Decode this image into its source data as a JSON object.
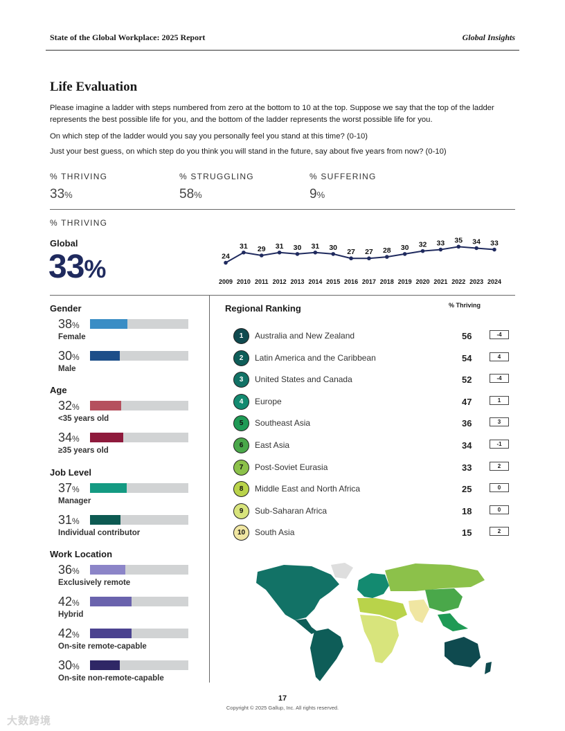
{
  "header": {
    "left": "State of the Global Workplace: 2025 Report",
    "right": "Global Insights"
  },
  "section_title": "Life Evaluation",
  "questions": [
    "Please imagine a ladder with steps numbered from zero at the bottom to 10 at the top. Suppose we say that the top of the ladder represents the best possible life for you, and the bottom of the ladder represents the worst possible life for you.",
    "On which step of the ladder would you say you personally feel you stand at this time? (0-10)",
    "Just your best guess, on which step do you think you will stand in the future, say about five years from now? (0-10)"
  ],
  "kpis": [
    {
      "label": "% THRIVING",
      "value": "33",
      "unit": "%"
    },
    {
      "label": "% STRUGGLING",
      "value": "58",
      "unit": "%"
    },
    {
      "label": "% SUFFERING",
      "value": "9",
      "unit": "%"
    }
  ],
  "thriving_label": "% THRIVING",
  "global": {
    "label": "Global",
    "value": "33",
    "unit": "%"
  },
  "chart_data": {
    "type": "line",
    "x": [
      "2009",
      "2010",
      "2011",
      "2012",
      "2013",
      "2014",
      "2015",
      "2016",
      "2017",
      "2018",
      "2019",
      "2020",
      "2021",
      "2022",
      "2023",
      "2024"
    ],
    "series": [
      {
        "values": [
          24,
          31,
          29,
          31,
          30,
          31,
          30,
          27,
          27,
          28,
          30,
          32,
          33,
          35,
          34,
          33
        ]
      }
    ],
    "title": "",
    "xlabel": "",
    "ylabel": "",
    "ylim": [
      20,
      38
    ],
    "color": "#1f2a5e",
    "grid": false
  },
  "demographics": [
    {
      "title": "Gender",
      "items": [
        {
          "value": "38",
          "unit": "%",
          "label": "Female",
          "fraction": 0.38,
          "color": "#3a8dc5"
        },
        {
          "value": "30",
          "unit": "%",
          "label": "Male",
          "fraction": 0.3,
          "color": "#1d4e89"
        }
      ]
    },
    {
      "title": "Age",
      "items": [
        {
          "value": "32",
          "unit": "%",
          "label": "<35 years old",
          "fraction": 0.32,
          "color": "#b5505e"
        },
        {
          "value": "34",
          "unit": "%",
          "label": "≥35 years old",
          "fraction": 0.34,
          "color": "#8e1a3c"
        }
      ]
    },
    {
      "title": "Job Level",
      "items": [
        {
          "value": "37",
          "unit": "%",
          "label": "Manager",
          "fraction": 0.37,
          "color": "#149a82"
        },
        {
          "value": "31",
          "unit": "%",
          "label": "Individual contributor",
          "fraction": 0.31,
          "color": "#0d5a52"
        }
      ]
    },
    {
      "title": "Work Location",
      "items": [
        {
          "value": "36",
          "unit": "%",
          "label": "Exclusively remote",
          "fraction": 0.36,
          "color": "#8c85c8"
        },
        {
          "value": "42",
          "unit": "%",
          "label": "Hybrid",
          "fraction": 0.42,
          "color": "#6a63ad"
        },
        {
          "value": "42",
          "unit": "%",
          "label": "On-site remote-capable",
          "fraction": 0.42,
          "color": "#4b4390"
        },
        {
          "value": "30",
          "unit": "%",
          "label": "On-site non-remote-capable",
          "fraction": 0.3,
          "color": "#2f2766"
        }
      ]
    }
  ],
  "regional": {
    "title": "Regional Ranking",
    "column_header": "% Thriving",
    "items": [
      {
        "rank": "1",
        "name": "Australia and New Zealand",
        "value": "56",
        "change": "-4",
        "color": "#0f4a4f",
        "text_color": "#ffffff"
      },
      {
        "rank": "2",
        "name": "Latin America and the Caribbean",
        "value": "54",
        "change": "4",
        "color": "#0e5d58",
        "text_color": "#ffffff"
      },
      {
        "rank": "3",
        "name": "United States and Canada",
        "value": "52",
        "change": "-4",
        "color": "#127266",
        "text_color": "#ffffff"
      },
      {
        "rank": "4",
        "name": "Europe",
        "value": "47",
        "change": "1",
        "color": "#138a70",
        "text_color": "#ffffff"
      },
      {
        "rank": "5",
        "name": "Southeast Asia",
        "value": "36",
        "change": "3",
        "color": "#1f9a55",
        "text_color": "#111111"
      },
      {
        "rank": "6",
        "name": "East Asia",
        "value": "34",
        "change": "-1",
        "color": "#4aa84a",
        "text_color": "#111111"
      },
      {
        "rank": "7",
        "name": "Post-Soviet Eurasia",
        "value": "33",
        "change": "2",
        "color": "#8cc14a",
        "text_color": "#111111"
      },
      {
        "rank": "8",
        "name": "Middle East and North Africa",
        "value": "25",
        "change": "0",
        "color": "#b9d34a",
        "text_color": "#111111"
      },
      {
        "rank": "9",
        "name": "Sub-Saharan Africa",
        "value": "18",
        "change": "0",
        "color": "#d8e47c",
        "text_color": "#111111"
      },
      {
        "rank": "10",
        "name": "South Asia",
        "value": "15",
        "change": "2",
        "color": "#f0e6a2",
        "text_color": "#111111"
      }
    ]
  },
  "footer": {
    "page": "17",
    "copyright": "Copyright © 2025 Gallup, Inc. All rights reserved."
  },
  "watermark": "大数跨境"
}
